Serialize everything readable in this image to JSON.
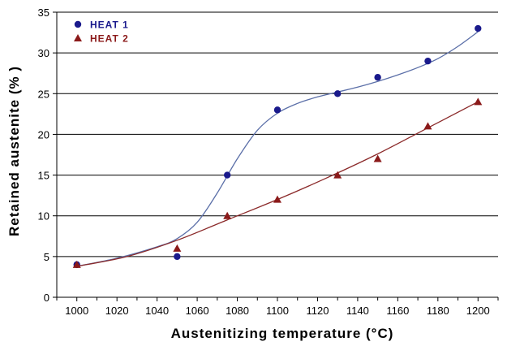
{
  "chart_data": {
    "type": "scatter",
    "xlabel": "Austenitizing temperature (°C)",
    "ylabel": "Retained austenite (% )",
    "xlim": [
      990,
      1210
    ],
    "ylim": [
      0,
      35
    ],
    "x_ticks": [
      1000,
      1020,
      1040,
      1060,
      1080,
      1100,
      1120,
      1140,
      1160,
      1180,
      1200
    ],
    "y_ticks": [
      0,
      5,
      10,
      15,
      20,
      25,
      30,
      35
    ],
    "grid": "horizontal",
    "legend": "top-left",
    "series": [
      {
        "name": "HEAT 1",
        "marker": "circle",
        "color": "#1a1a8c",
        "line_color": "#5b6fa8",
        "x": [
          1000,
          1050,
          1075,
          1100,
          1130,
          1150,
          1175,
          1200
        ],
        "y": [
          4,
          5,
          15,
          23,
          25,
          27,
          29,
          33
        ],
        "trend_x": [
          1000,
          1020,
          1040,
          1050,
          1060,
          1070,
          1080,
          1090,
          1100,
          1110,
          1120,
          1130,
          1140,
          1150,
          1160,
          1170,
          1180,
          1190,
          1200
        ],
        "trend_y": [
          3.8,
          4.8,
          6.2,
          7.2,
          9.2,
          12.8,
          17.0,
          20.5,
          22.6,
          23.8,
          24.6,
          25.2,
          25.8,
          26.5,
          27.3,
          28.2,
          29.3,
          30.8,
          32.6
        ]
      },
      {
        "name": "HEAT 2",
        "marker": "triangle",
        "color": "#8b1a1a",
        "line_color": "#8b2a2a",
        "x": [
          1000,
          1050,
          1075,
          1100,
          1130,
          1150,
          1175,
          1200
        ],
        "y": [
          4,
          6,
          10,
          12,
          15,
          17,
          21,
          24
        ],
        "trend_x": [
          1000,
          1025,
          1050,
          1075,
          1100,
          1125,
          1150,
          1175,
          1200
        ],
        "trend_y": [
          3.8,
          5.0,
          7.0,
          9.5,
          12.0,
          14.7,
          17.6,
          20.8,
          24.0
        ]
      }
    ]
  }
}
